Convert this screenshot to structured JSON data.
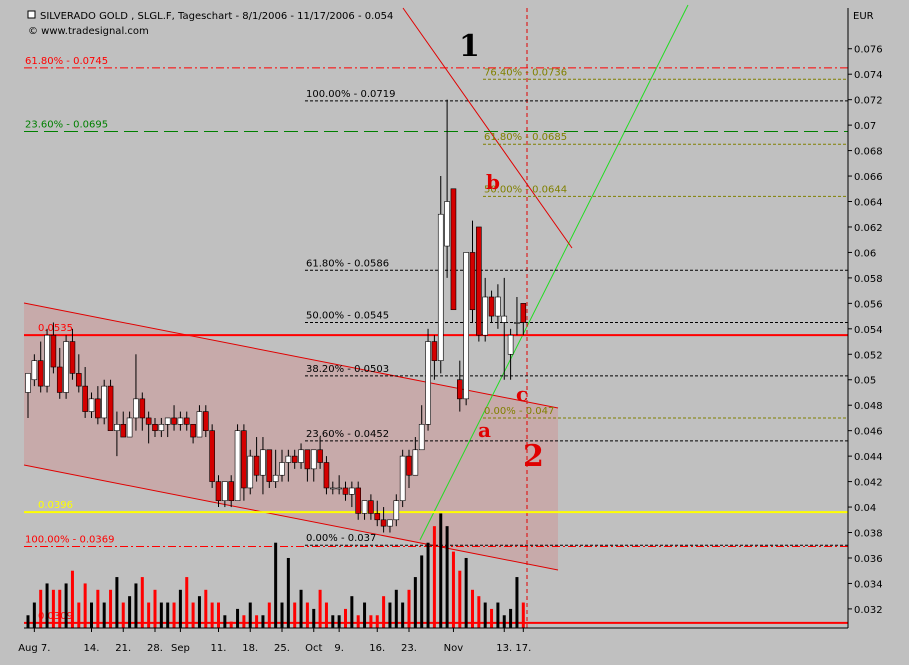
{
  "chart_data": {
    "type": "candlestick",
    "title": "SILVERADO GOLD   , SLGL.F, Tageschart - 8/1/2006 - 11/17/2006 - 0.054",
    "subtitle": "© www.tradesignal.com",
    "y_axis_label": "EUR",
    "ylim": [
      0.0305,
      0.0792
    ],
    "yticks": [
      0.032,
      0.034,
      0.036,
      0.038,
      0.04,
      0.042,
      0.044,
      0.046,
      0.048,
      0.05,
      0.052,
      0.054,
      0.056,
      0.058,
      0.06,
      0.062,
      0.064,
      0.066,
      0.068,
      0.07,
      0.072,
      0.074,
      0.076
    ],
    "xticks": [
      {
        "value": 1,
        "label": "Aug 7."
      },
      {
        "value": 10,
        "label": "14."
      },
      {
        "value": 15,
        "label": "21."
      },
      {
        "value": 20,
        "label": "28."
      },
      {
        "value": 24,
        "label": "Sep"
      },
      {
        "value": 30,
        "label": "11."
      },
      {
        "value": 35,
        "label": "18."
      },
      {
        "value": 40,
        "label": "25."
      },
      {
        "value": 45,
        "label": "Oct"
      },
      {
        "value": 49,
        "label": "9."
      },
      {
        "value": 55,
        "label": "16."
      },
      {
        "value": 60,
        "label": "23."
      },
      {
        "value": 67,
        "label": "Nov"
      },
      {
        "value": 75,
        "label": "13."
      },
      {
        "value": 78,
        "label": "17."
      }
    ],
    "up_color": "#ffffff",
    "down_color": "#d40000",
    "ohlc": [
      [
        0.049,
        0.0505,
        0.047,
        0.0505
      ],
      [
        0.05,
        0.052,
        0.0495,
        0.0515
      ],
      [
        0.0515,
        0.053,
        0.049,
        0.0495
      ],
      [
        0.0495,
        0.054,
        0.049,
        0.0535
      ],
      [
        0.0535,
        0.0545,
        0.0505,
        0.051
      ],
      [
        0.051,
        0.0525,
        0.0485,
        0.049
      ],
      [
        0.049,
        0.0535,
        0.0485,
        0.053
      ],
      [
        0.053,
        0.054,
        0.05,
        0.0505
      ],
      [
        0.0505,
        0.052,
        0.049,
        0.0495
      ],
      [
        0.0495,
        0.051,
        0.047,
        0.0475
      ],
      [
        0.0475,
        0.049,
        0.047,
        0.0485
      ],
      [
        0.0485,
        0.0495,
        0.0465,
        0.047
      ],
      [
        0.047,
        0.05,
        0.0465,
        0.0495
      ],
      [
        0.0495,
        0.05,
        0.046,
        0.046
      ],
      [
        0.046,
        0.0475,
        0.044,
        0.0465
      ],
      [
        0.0465,
        0.0475,
        0.0455,
        0.0455
      ],
      [
        0.0455,
        0.0475,
        0.0455,
        0.047
      ],
      [
        0.047,
        0.052,
        0.046,
        0.0485
      ],
      [
        0.0485,
        0.049,
        0.046,
        0.047
      ],
      [
        0.047,
        0.0475,
        0.045,
        0.0465
      ],
      [
        0.0465,
        0.047,
        0.0455,
        0.046
      ],
      [
        0.046,
        0.047,
        0.0455,
        0.0465
      ],
      [
        0.0465,
        0.047,
        0.0455,
        0.047
      ],
      [
        0.047,
        0.048,
        0.046,
        0.0465
      ],
      [
        0.0465,
        0.0475,
        0.046,
        0.047
      ],
      [
        0.047,
        0.0475,
        0.046,
        0.0465
      ],
      [
        0.0465,
        0.0465,
        0.045,
        0.0455
      ],
      [
        0.0455,
        0.048,
        0.0455,
        0.0475
      ],
      [
        0.0475,
        0.048,
        0.0455,
        0.046
      ],
      [
        0.046,
        0.0465,
        0.0415,
        0.042
      ],
      [
        0.042,
        0.0425,
        0.04,
        0.0405
      ],
      [
        0.0405,
        0.042,
        0.04,
        0.042
      ],
      [
        0.042,
        0.0425,
        0.04,
        0.0405
      ],
      [
        0.0405,
        0.0465,
        0.0405,
        0.046
      ],
      [
        0.046,
        0.0465,
        0.0405,
        0.0415
      ],
      [
        0.0415,
        0.0445,
        0.041,
        0.044
      ],
      [
        0.044,
        0.0455,
        0.042,
        0.0425
      ],
      [
        0.0425,
        0.0455,
        0.041,
        0.0445
      ],
      [
        0.0445,
        0.0445,
        0.0415,
        0.042
      ],
      [
        0.042,
        0.0445,
        0.0415,
        0.0425
      ],
      [
        0.0425,
        0.0445,
        0.042,
        0.0435
      ],
      [
        0.0435,
        0.0445,
        0.042,
        0.044
      ],
      [
        0.044,
        0.0445,
        0.043,
        0.0435
      ],
      [
        0.0435,
        0.045,
        0.043,
        0.0445
      ],
      [
        0.0445,
        0.0445,
        0.042,
        0.043
      ],
      [
        0.043,
        0.0445,
        0.042,
        0.0445
      ],
      [
        0.0445,
        0.0455,
        0.043,
        0.0435
      ],
      [
        0.0435,
        0.044,
        0.041,
        0.0415
      ],
      [
        0.0415,
        0.042,
        0.041,
        0.0415
      ],
      [
        0.0415,
        0.0425,
        0.041,
        0.0415
      ],
      [
        0.0415,
        0.042,
        0.0405,
        0.041
      ],
      [
        0.041,
        0.042,
        0.04,
        0.0415
      ],
      [
        0.0415,
        0.042,
        0.039,
        0.0395
      ],
      [
        0.0395,
        0.0405,
        0.039,
        0.0405
      ],
      [
        0.0405,
        0.041,
        0.039,
        0.0395
      ],
      [
        0.0395,
        0.0405,
        0.0385,
        0.039
      ],
      [
        0.039,
        0.04,
        0.038,
        0.0385
      ],
      [
        0.0385,
        0.039,
        0.038,
        0.039
      ],
      [
        0.039,
        0.041,
        0.0385,
        0.0405
      ],
      [
        0.0405,
        0.0445,
        0.04,
        0.044
      ],
      [
        0.044,
        0.0445,
        0.0415,
        0.0425
      ],
      [
        0.0425,
        0.0455,
        0.0425,
        0.0445
      ],
      [
        0.0445,
        0.048,
        0.0445,
        0.0465
      ],
      [
        0.0465,
        0.054,
        0.046,
        0.053
      ],
      [
        0.053,
        0.0535,
        0.05,
        0.0515
      ],
      [
        0.0515,
        0.066,
        0.0505,
        0.063
      ],
      [
        0.0605,
        0.072,
        0.058,
        0.064
      ],
      [
        0.065,
        0.065,
        0.0555,
        0.0555
      ],
      [
        0.05,
        0.0515,
        0.0475,
        0.0485
      ],
      [
        0.0485,
        0.06,
        0.048,
        0.06
      ],
      [
        0.06,
        0.0625,
        0.0545,
        0.0555
      ],
      [
        0.062,
        0.062,
        0.053,
        0.0535
      ],
      [
        0.0535,
        0.058,
        0.053,
        0.0565
      ],
      [
        0.0565,
        0.057,
        0.0545,
        0.055
      ],
      [
        0.055,
        0.0575,
        0.054,
        0.0565
      ],
      [
        0.0545,
        0.058,
        0.05,
        0.055
      ],
      [
        0.052,
        0.054,
        0.05,
        0.0535
      ],
      [
        0.0545,
        0.0565,
        0.0535,
        0.0545
      ],
      [
        0.056,
        0.056,
        0.0535,
        0.0545
      ]
    ],
    "volume": [
      0.0315,
      0.0325,
      0.0335,
      0.034,
      0.0335,
      0.0335,
      0.034,
      0.035,
      0.0325,
      0.034,
      0.0325,
      0.0335,
      0.0325,
      0.0335,
      0.0345,
      0.0325,
      0.033,
      0.034,
      0.0345,
      0.0325,
      0.0335,
      0.0325,
      0.0325,
      0.0325,
      0.0335,
      0.0345,
      0.0325,
      0.033,
      0.0335,
      0.0325,
      0.0325,
      0.0315,
      0.031,
      0.032,
      0.0315,
      0.0325,
      0.0315,
      0.0315,
      0.0325,
      0.0372,
      0.0325,
      0.036,
      0.0325,
      0.0335,
      0.0325,
      0.032,
      0.0335,
      0.0325,
      0.0315,
      0.0315,
      0.032,
      0.033,
      0.0315,
      0.0325,
      0.0315,
      0.0315,
      0.033,
      0.0325,
      0.0335,
      0.0325,
      0.0335,
      0.0345,
      0.0362,
      0.0372,
      0.0385,
      0.0395,
      0.0385,
      0.0365,
      0.035,
      0.036,
      0.0335,
      0.033,
      0.0325,
      0.032,
      0.0325,
      0.0315,
      0.032,
      0.0345,
      0.0325
    ],
    "levels": [
      {
        "label": "61.80% - 0.0745",
        "value": 0.0745,
        "color": "#ff0000",
        "style": "dashdot"
      },
      {
        "label": "23.60% - 0.0695",
        "value": 0.0695,
        "color": "#008000",
        "style": "longdash"
      },
      {
        "value": 0.0535,
        "color": "#ff0000",
        "style": "solid"
      },
      {
        "value": 0.0396,
        "color": "#ffff00",
        "style": "solid"
      },
      {
        "label": "100.00% - 0.0369",
        "value": 0.0369,
        "color": "#ff0000",
        "style": "dashdot"
      },
      {
        "value": 0.0309,
        "color": "#ff0000",
        "style": "solid"
      }
    ],
    "retracement": [
      {
        "label": "100.00% - 0.0719",
        "value": 0.0719
      },
      {
        "label": "61.80% - 0.0586",
        "value": 0.0586
      },
      {
        "label": "50.00% - 0.0545",
        "value": 0.0545
      },
      {
        "label": "38.20% - 0.0503",
        "value": 0.0503
      },
      {
        "label": "23.60% - 0.0452",
        "value": 0.0452
      },
      {
        "label": "0.00% - 0.037",
        "value": 0.037
      }
    ],
    "retracement_color": "#000000",
    "extension": [
      {
        "label": "76.40% - 0.0736",
        "value": 0.0736
      },
      {
        "label": "61.80% - 0.0685",
        "value": 0.0685
      },
      {
        "label": "50.00% - 0.0644",
        "value": 0.0644
      },
      {
        "label": "0.00% - 0.047",
        "value": 0.047
      }
    ],
    "extension_color": "#808000",
    "wave_labels": [
      "1",
      "b",
      "a",
      "c",
      "2"
    ]
  }
}
